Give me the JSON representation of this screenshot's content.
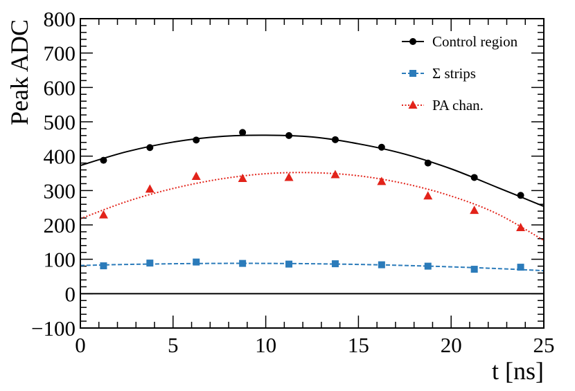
{
  "chart_data": {
    "type": "scatter",
    "title": "",
    "xlabel": "t [ns]",
    "ylabel": "Peak ADC",
    "xlim": [
      0,
      25
    ],
    "ylim": [
      -100,
      800
    ],
    "x_ticks": [
      0,
      5,
      10,
      15,
      20,
      25
    ],
    "y_ticks": [
      -100,
      0,
      100,
      200,
      300,
      400,
      500,
      600,
      700,
      800
    ],
    "zero_line": 0,
    "grid": false,
    "legend_position": "top-right",
    "series": [
      {
        "name": "Control region",
        "color": "#000000",
        "marker": "circle",
        "line_style": "solid",
        "x": [
          1.25,
          3.75,
          6.25,
          8.75,
          11.25,
          13.75,
          16.25,
          18.75,
          21.25,
          23.75
        ],
        "y": [
          388,
          425,
          447,
          469,
          460,
          448,
          426,
          380,
          338,
          286
        ],
        "yerr": [
          4,
          4,
          4,
          4,
          4,
          4,
          4,
          4,
          4,
          4
        ],
        "fit": {
          "x": [
            0,
            2.5,
            5,
            7.5,
            10,
            12.5,
            15,
            17.5,
            20,
            22.5,
            25
          ],
          "y": [
            373,
            413,
            441,
            457,
            461,
            456,
            436,
            406,
            363,
            309,
            254
          ]
        }
      },
      {
        "name": "Σ strips",
        "color": "#2b7bba",
        "marker": "square",
        "line_style": "dashed",
        "x": [
          1.25,
          3.75,
          6.25,
          8.75,
          11.25,
          13.75,
          16.25,
          18.75,
          21.25,
          23.75
        ],
        "y": [
          81,
          89,
          92,
          88,
          86,
          87,
          84,
          80,
          71,
          77
        ],
        "yerr": [
          3,
          3,
          3,
          3,
          3,
          3,
          3,
          3,
          3,
          3
        ],
        "fit": {
          "x": [
            0,
            2.5,
            5,
            7.5,
            10,
            12.5,
            15,
            17.5,
            20,
            22.5,
            25
          ],
          "y": [
            82,
            85,
            87,
            88,
            88,
            87,
            85,
            82,
            78,
            73,
            67
          ]
        }
      },
      {
        "name": "PA chan.",
        "color": "#e2231a",
        "marker": "triangle",
        "line_style": "dotted",
        "x": [
          1.25,
          3.75,
          6.25,
          8.75,
          11.25,
          13.75,
          16.25,
          18.75,
          21.25,
          23.75
        ],
        "y": [
          229,
          304,
          341,
          335,
          338,
          346,
          326,
          284,
          242,
          192
        ],
        "yerr": [
          8,
          10,
          10,
          9,
          9,
          9,
          8,
          7,
          7,
          10
        ],
        "fit": {
          "x": [
            0,
            2.5,
            5,
            7.5,
            10,
            12.5,
            15,
            17.5,
            20,
            22.5,
            25
          ],
          "y": [
            218,
            268,
            306,
            333,
            349,
            352,
            343,
            320,
            284,
            232,
            155
          ]
        }
      }
    ]
  }
}
